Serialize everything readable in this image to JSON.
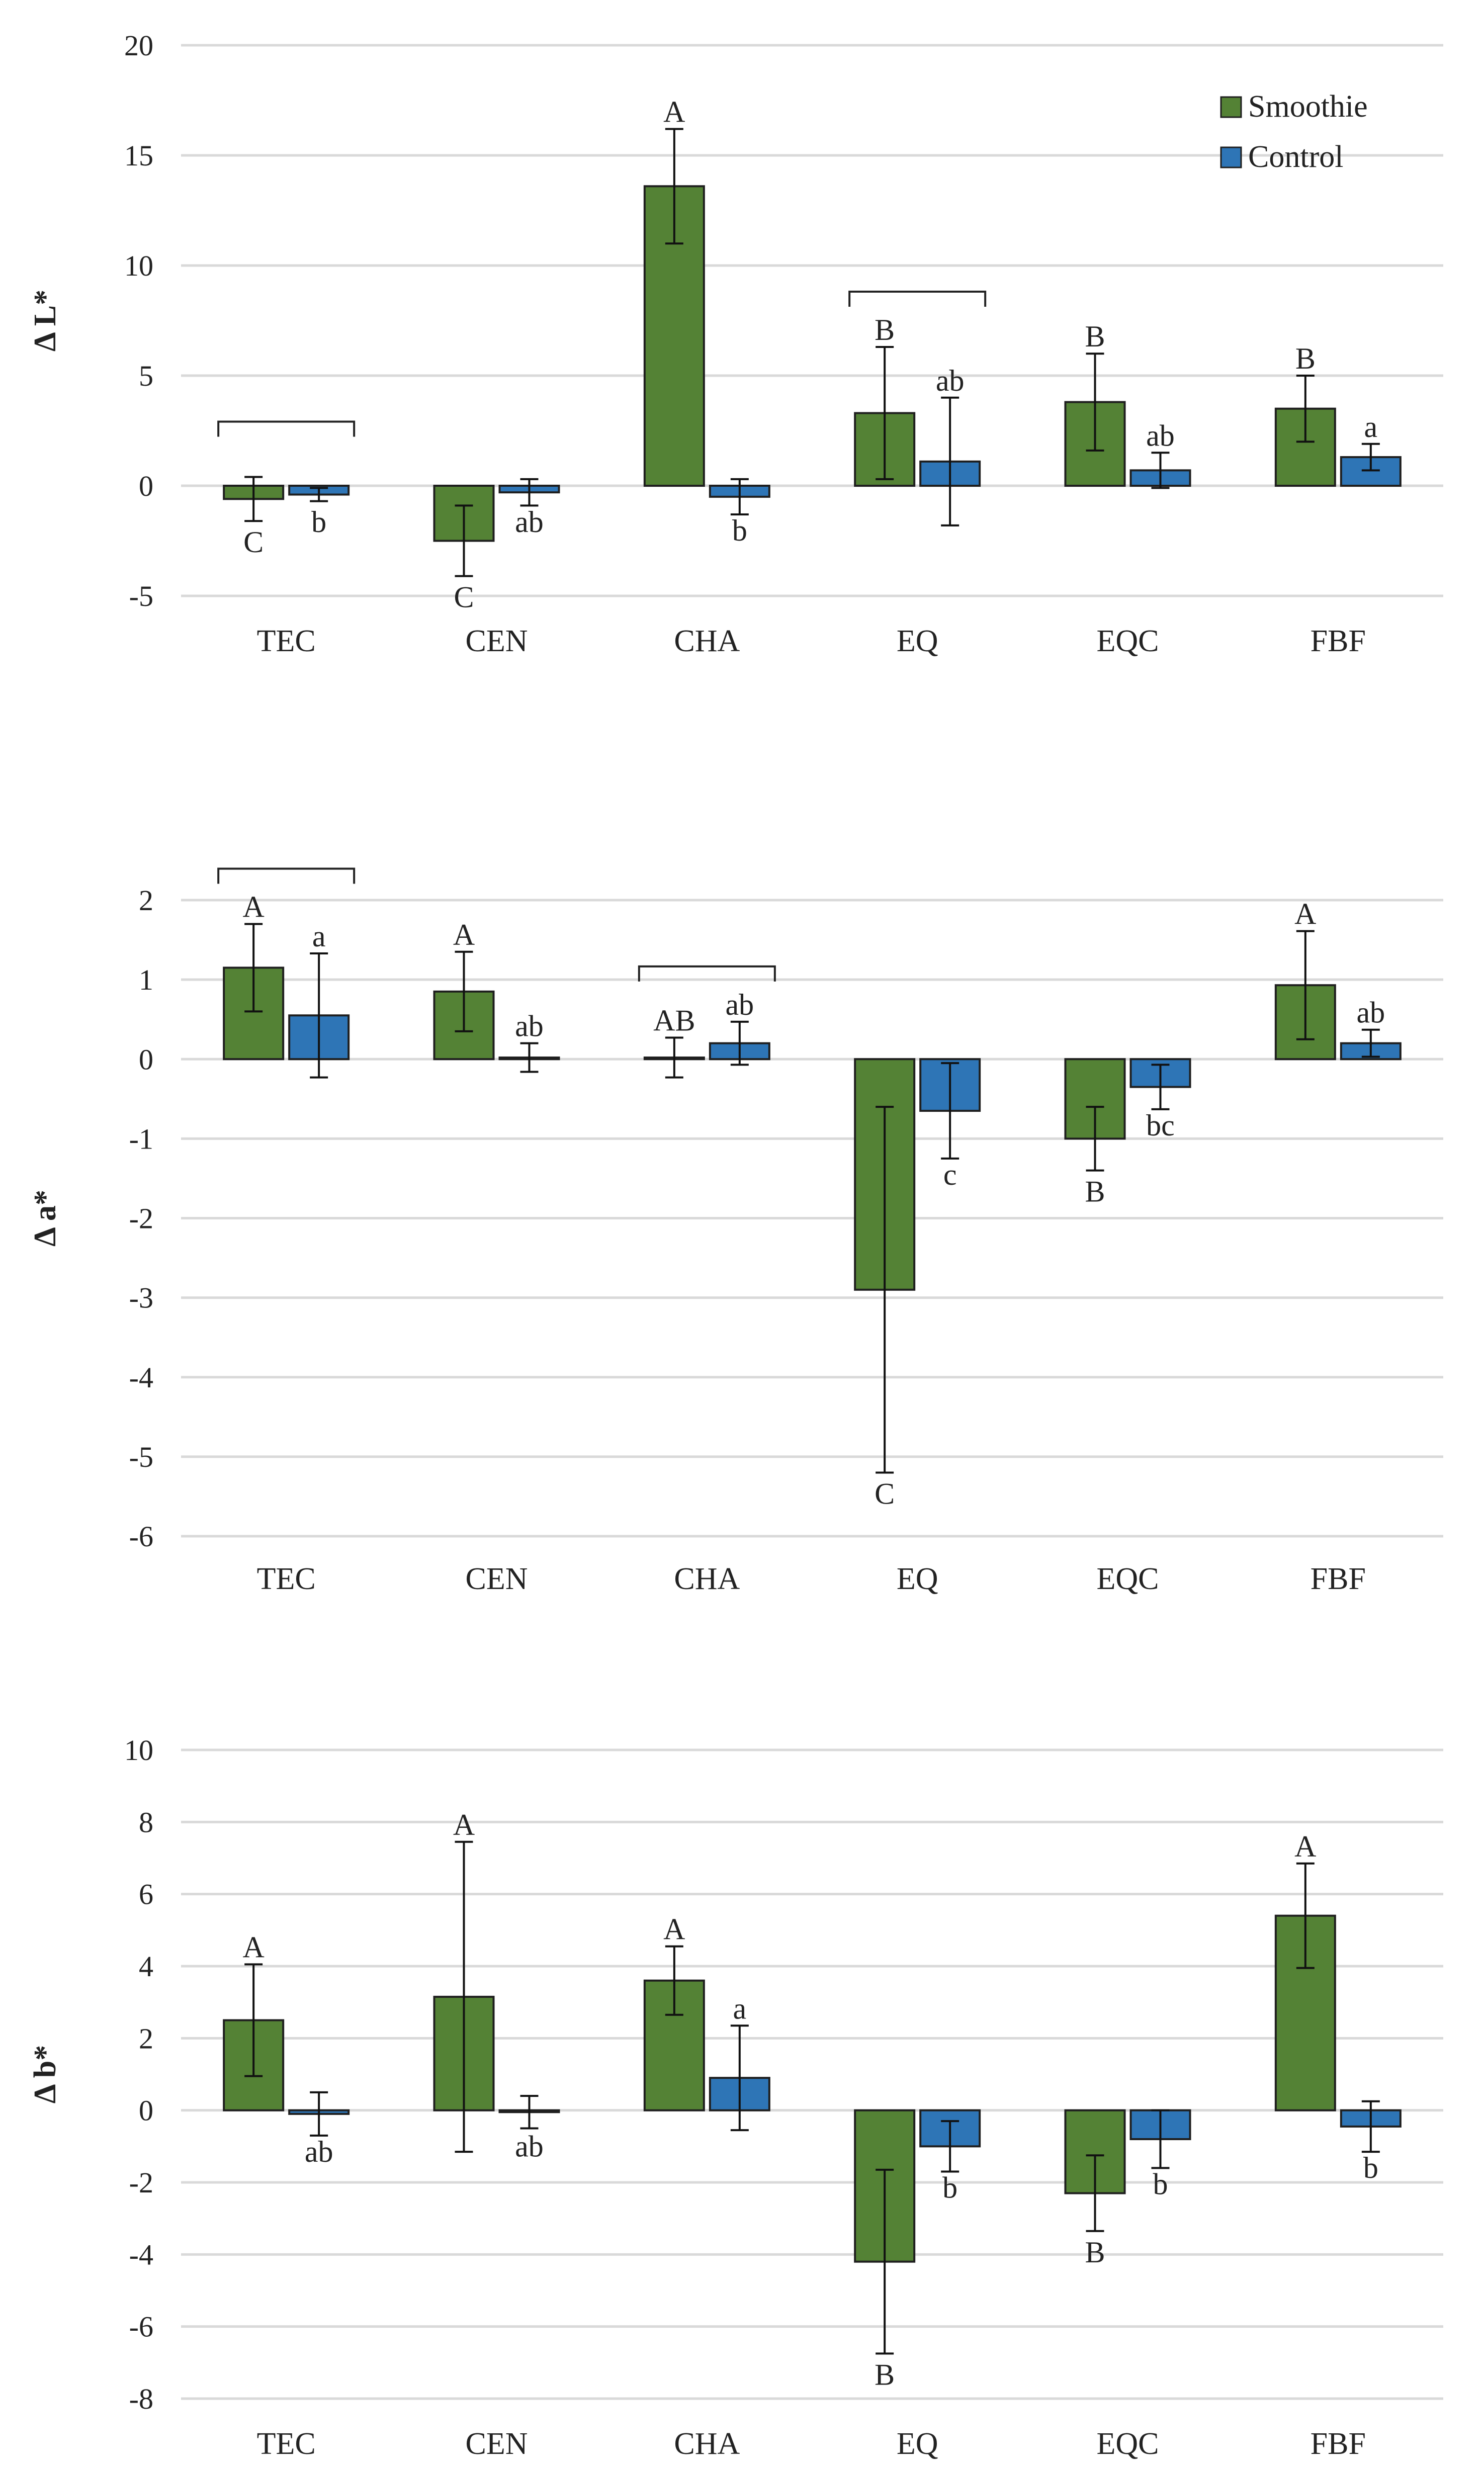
{
  "colors": {
    "smoothie": "#548235",
    "control": "#2e75b6"
  },
  "legend": {
    "entries": [
      "Smoothie",
      "Control"
    ]
  },
  "chart_data": [
    {
      "type": "bar",
      "ylabel": "Δ L*",
      "ylim": [
        -5,
        20
      ],
      "yticks": [
        -5,
        0,
        5,
        10,
        15,
        20
      ],
      "grid": true,
      "legend": "top-right",
      "categories": [
        "TEC",
        "CEN",
        "CHA",
        "EQ",
        "EQC",
        "FBF"
      ],
      "series": [
        {
          "name": "Smoothie",
          "values": [
            -0.6,
            -2.5,
            13.6,
            3.3,
            3.8,
            3.5
          ],
          "errors": [
            1.0,
            1.6,
            2.6,
            3.0,
            2.2,
            1.5
          ],
          "labels": [
            "C",
            "C",
            "A",
            "B",
            "B",
            "B"
          ]
        },
        {
          "name": "Control",
          "values": [
            -0.4,
            -0.3,
            -0.5,
            1.1,
            0.7,
            1.3
          ],
          "errors": [
            0.3,
            0.6,
            0.8,
            2.9,
            0.8,
            0.6
          ],
          "labels": [
            "b",
            "ab",
            "b",
            "ab",
            "ab",
            "a"
          ]
        }
      ],
      "brackets": [
        0,
        3
      ]
    },
    {
      "type": "bar",
      "ylabel": "Δ a*",
      "ylim": [
        -6,
        2
      ],
      "yticks": [
        -6,
        -5,
        -4,
        -3,
        -2,
        -1,
        0,
        1,
        2
      ],
      "grid": true,
      "categories": [
        "TEC",
        "CEN",
        "CHA",
        "EQ",
        "EQC",
        "FBF"
      ],
      "series": [
        {
          "name": "Smoothie",
          "values": [
            1.15,
            0.85,
            0.02,
            -2.9,
            -1.0,
            0.93
          ],
          "errors": [
            0.55,
            0.5,
            0.25,
            2.3,
            0.4,
            0.68
          ],
          "labels": [
            "A",
            "A",
            "AB",
            "C",
            "B",
            "A"
          ]
        },
        {
          "name": "Control",
          "values": [
            0.55,
            0.02,
            0.2,
            -0.65,
            -0.35,
            0.2
          ],
          "errors": [
            0.78,
            0.18,
            0.27,
            0.6,
            0.28,
            0.17
          ],
          "labels": [
            "a",
            "ab",
            "ab",
            "c",
            "bc",
            "ab"
          ]
        }
      ],
      "brackets": [
        0,
        2
      ]
    },
    {
      "type": "bar",
      "ylabel": "Δ b*",
      "ylim": [
        -8,
        10
      ],
      "yticks": [
        -8,
        -6,
        -4,
        -2,
        0,
        2,
        4,
        6,
        8,
        10
      ],
      "grid": true,
      "categories": [
        "TEC",
        "CEN",
        "CHA",
        "EQ",
        "EQC",
        "FBF"
      ],
      "series": [
        {
          "name": "Smoothie",
          "values": [
            2.5,
            3.15,
            3.6,
            -4.2,
            -2.3,
            5.4
          ],
          "errors": [
            1.55,
            4.3,
            0.95,
            2.55,
            1.05,
            1.45
          ],
          "labels": [
            "A",
            "A",
            "A",
            "B",
            "B",
            "A"
          ]
        },
        {
          "name": "Control",
          "values": [
            -0.1,
            -0.05,
            0.9,
            -1.0,
            -0.8,
            -0.45
          ],
          "errors": [
            0.6,
            0.45,
            1.45,
            0.7,
            0.8,
            0.7
          ],
          "labels": [
            "ab",
            "ab",
            "a",
            "b",
            "b",
            "b"
          ]
        }
      ],
      "brackets": []
    }
  ]
}
